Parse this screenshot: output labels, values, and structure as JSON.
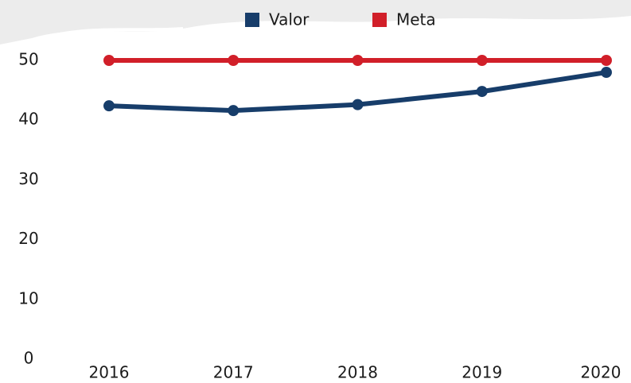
{
  "chart_data": {
    "type": "line",
    "categories": [
      "2016",
      "2017",
      "2018",
      "2019",
      "2020"
    ],
    "series": [
      {
        "name": "Valor",
        "color": "#173d6a",
        "values": [
          42.4,
          41.6,
          42.6,
          44.8,
          48.0
        ]
      },
      {
        "name": "Meta",
        "color": "#d11f29",
        "values": [
          50,
          50,
          50,
          50,
          50
        ]
      }
    ],
    "ylim": [
      0,
      50
    ],
    "yticks": [
      0,
      10,
      20,
      30,
      40,
      50
    ],
    "grid": false,
    "legend": "top"
  }
}
